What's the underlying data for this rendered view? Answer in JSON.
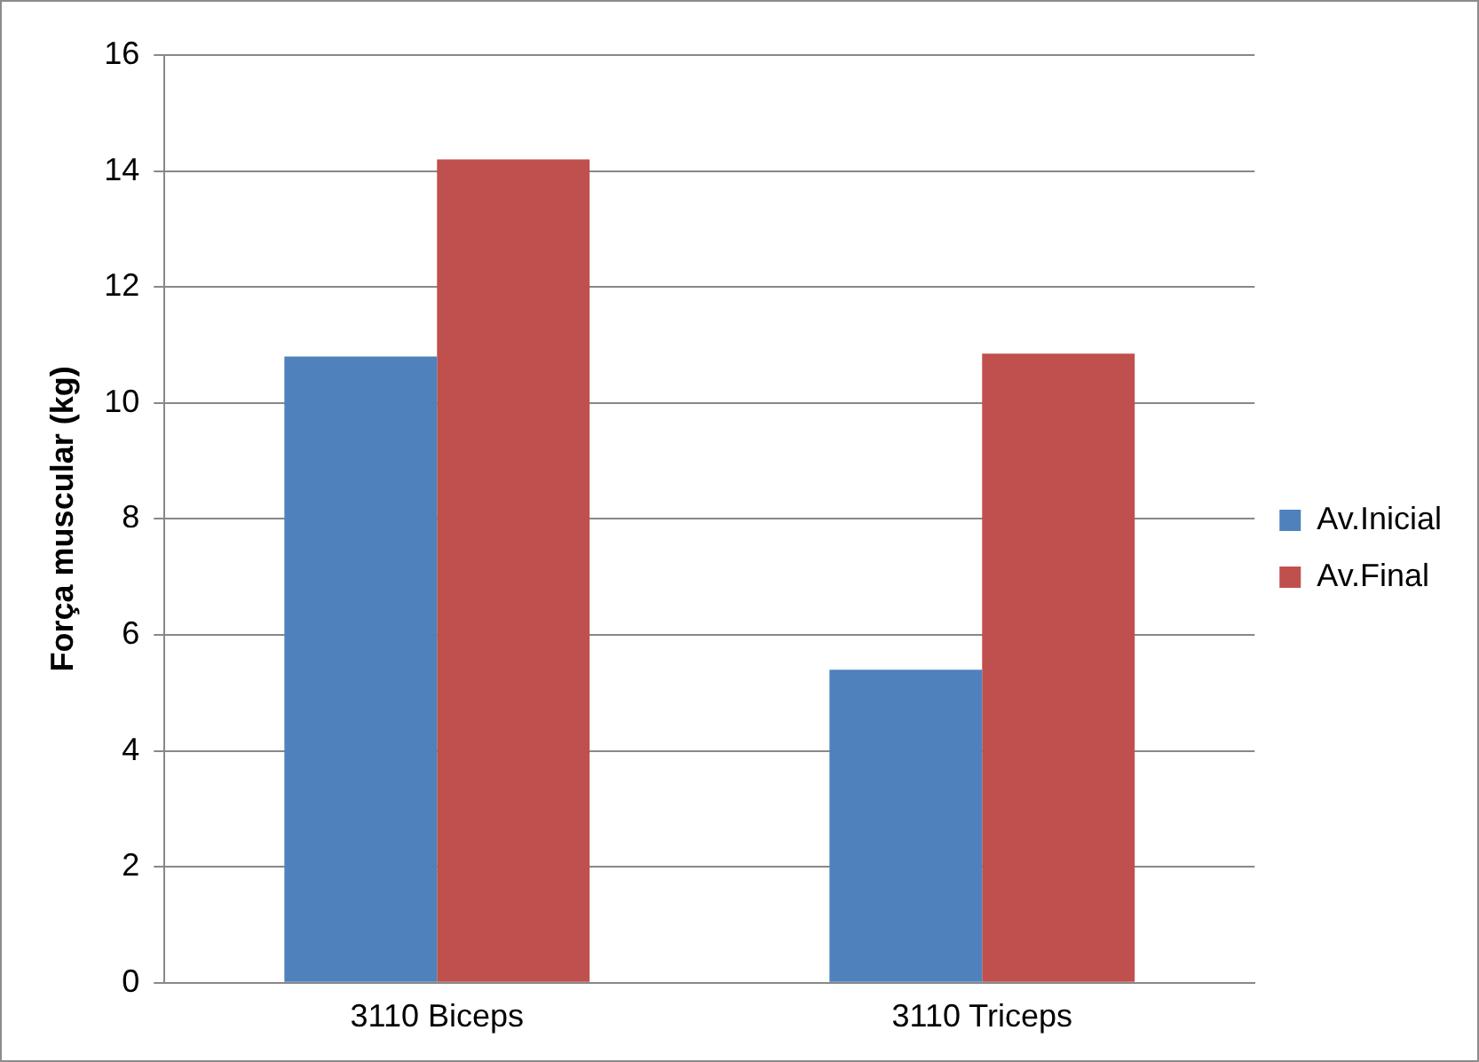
{
  "chart_data": {
    "type": "bar",
    "ylabel": "Força muscular (kg)",
    "categories": [
      "3110 Biceps",
      "3110 Triceps"
    ],
    "series": [
      {
        "name": "Av.Inicial",
        "color": "#4f81bd",
        "values": [
          10.8,
          5.4
        ]
      },
      {
        "name": "Av.Final",
        "color": "#c0504d",
        "values": [
          14.2,
          10.85
        ]
      }
    ],
    "ylim": [
      0,
      16
    ],
    "yticks": [
      0,
      2,
      4,
      6,
      8,
      10,
      12,
      14,
      16
    ],
    "grid": "y",
    "legend": "right"
  }
}
